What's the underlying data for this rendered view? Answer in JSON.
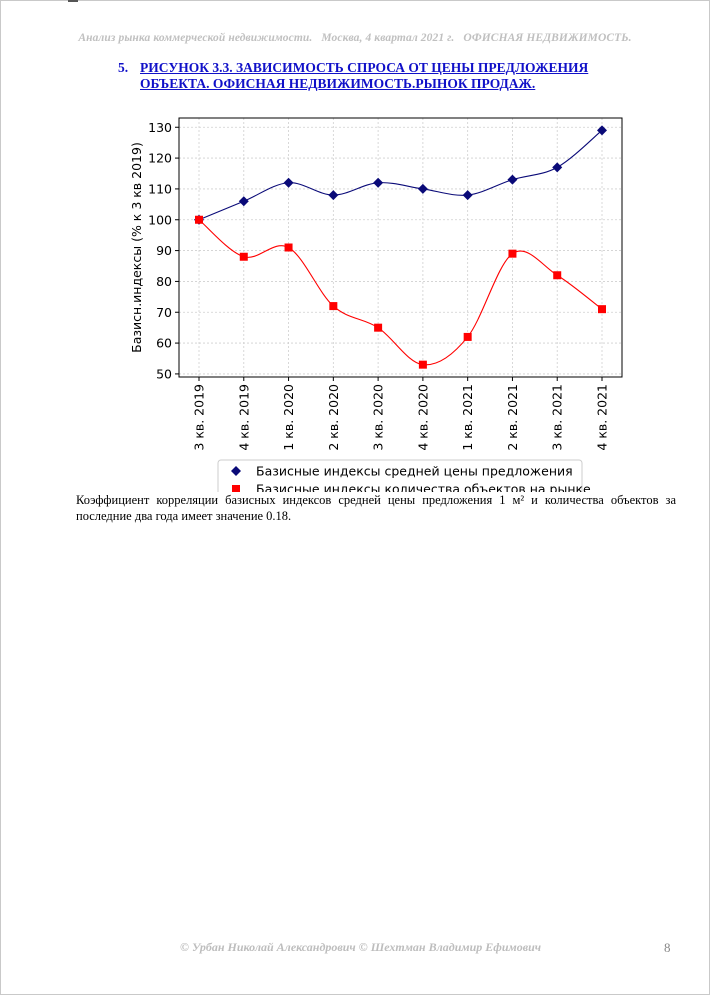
{
  "header": {
    "part1": "Анализ рынка коммерческой недвижимости.",
    "part2": "Москва,  4 квартал 2021 г.",
    "part3": "ОФИСНАЯ НЕДВИЖИМОСТЬ."
  },
  "figure": {
    "number": "5.",
    "title": "РИСУНОК 3.3. ЗАВИСИМОСТЬ СПРОСА ОТ ЦЕНЫ ПРЕДЛОЖЕНИЯ ОБЪЕКТА.  ОФИСНАЯ НЕДВИЖИМОСТЬ.РЫНОК ПРОДАЖ."
  },
  "chart_data": {
    "type": "line",
    "categories": [
      "3 кв. 2019",
      "4 кв. 2019",
      "1 кв. 2020",
      "2 кв. 2020",
      "3 кв. 2020",
      "4 кв. 2020",
      "1 кв. 2021",
      "2 кв. 2021",
      "3 кв. 2021",
      "4 кв. 2021"
    ],
    "series": [
      {
        "name": "Базисные индексы средней цены предложения",
        "values": [
          100,
          106,
          112,
          108,
          112,
          110,
          108,
          113,
          117,
          129
        ],
        "color": "#0a0a78",
        "marker": "diamond"
      },
      {
        "name": "Базисные индексы количества объектов на рынке",
        "values": [
          100,
          88,
          91,
          72,
          65,
          53,
          62,
          89,
          82,
          71
        ],
        "color": "#ff0000",
        "marker": "square"
      }
    ],
    "ylabel": "Базисн.индексы (% к 3 кв 2019)",
    "xlabel": "",
    "title": "",
    "ylim": [
      49,
      133
    ],
    "yticks": [
      50,
      60,
      70,
      80,
      90,
      100,
      110,
      120,
      130
    ],
    "grid": true,
    "legend_position": "bottom"
  },
  "paragraph": "Коэффициент корреляции базисных индексов средней цены предложения 1 м² и количества объектов за последние два года имеет значение 0.18.",
  "footer": {
    "authors": "© Урбан Николай Александрович   © Шехтман Владимир Ефимович",
    "page": "8"
  }
}
